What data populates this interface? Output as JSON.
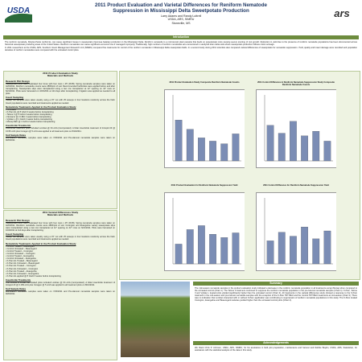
{
  "header": {
    "title": [
      "2011 Product Evaluation and Varietal Differences for Reniform Nematode",
      "Suppression in Mississippi Delta Sweetpotato Production"
    ],
    "authors": "Larry Adams and Randy Luttrell",
    "affiliation": "USDA, ARS, SIMRU",
    "location": "Stoneville, MS",
    "logo_left": "USDA",
    "logo_right": "ars"
  },
  "introduction": {
    "heading": "Introduction",
    "paragraphs": [
      "The reniform nematode, Rotylenchulus reniformis, can cause significant losses in sweetpotato (Ipomoea batatas) production in the Mississippi Delta. Reniform nematode is a microscopic plant parasite that feeds on sweetpotato roots causing severe stunting of root growth. Reduction in yield due to the presence of reniform nematode populations has been documented across historical sweetpotato producing areas of the United States. Reniform nematodes can cause significant economic loss if managed improperly. Traditionally, high numbers of reniform nematodes are encountered in sandy/silt loam delta soils where sweetpotato production follows cotton acreage.",
      "In 2011 researchers at the USDA, ARS, Southern Insect Management Research Unit (SIMRU) compared five treatments for control of the reniform nematode in Mississippi Delta sweetpotato fields. In a second study during 2011 scientists also compared varietal differences of sweetpotato for nematode suppression. Yield, quality and insect damage were recorded and population densities of reniform nematodes were compared with the untreated control plots."
    ]
  },
  "study_2011": {
    "heading": [
      "2011 Product Evaluation Study",
      "Materials and Methods"
    ],
    "blocks": [
      {
        "heading": "Research Plot Design",
        "lines": [
          "Sweetpotato plots were replicated four times with four rows x 25' (RCB). Spring nematode samples were taken on 4/20/2011. Reniform nematode counts were 2800/pint of soil. Recommended herbicides were applied before and after transplanting. Sweetpotato slips were transplanted using a two row transplanter at 12\" spacing on 42\" rows on 6/21/2011. Plots were harvested on 10/3/2011 at 114 days after transplanting. Irrigation was applied as needed to all plots."
        ]
      },
      {
        "heading": "Insect Sampling",
        "lines": [
          "Sweep net samples were taken weekly using a 15\" net with 25 sweeps in four locations randomly across the field. Insect populations were recorded and treatments applied as needed."
        ]
      },
      {
        "heading": "Nematicide Treatments Applied in the Product Evaluation Study",
        "lines": [
          "• Untreated",
          "• K-Pam HL @ 8 GA/A 3 weeks before transplanting",
          "• Telone II @ 6 GA/A 2 weeks before transplanting",
          "• Nemacur @ 2 LB/A 1 week before transplanting",
          "• Vydate L @ 1 GA/A 2 weeks before transplanting",
          "• Mocap 6EC @ 1 GA/A 2 weeks before transplanting"
        ]
      },
      {
        "heading": "Insecticide Treatments",
        "lines": [
          "Insecticide treatment plots included Lorsban @ 64 oz/A (incorporated). A foliar insecticide treatment of Intrepid 2F @ 0.156 oz/A plus Coragen @ 5 oz/A was applied to all treatment plots on 8/10/2011."
        ]
      },
      {
        "heading": "Soil Sample Dates",
        "lines": [
          "Mid-season nematode samples were taken on 7/20/2011 and Pre-Harvest nematode samples were taken on 9/20/2011."
        ]
      }
    ]
  },
  "study_varietal": {
    "heading": [
      "2011 Varietal Differences Study",
      "Materials and Methods"
    ],
    "blocks": [
      {
        "heading": "Research Plot Design",
        "lines": [
          "Sweetpotato plots were replicated four times with four rows x 25' (RCB). Spring nematode samples were taken on 4/20/2011. Reniform nematode counts were 2800/pint of soil. Covington and Evangeline variety sweetpotato slips were transplanted using a two row transplanter at 12\" spacing on 42\" rows on 6/21/2011. Plots were harvested on 10/4/2011 at 114 days after transplanting."
        ]
      },
      {
        "heading": "Insect Sampling",
        "lines": [
          "Sweep net samples were taken weekly using a 15\" net with 25 sweeps in four locations randomly across the field. Insect populations were recorded and treatments applied as needed."
        ]
      },
      {
        "heading": "Nematicide Treatments Applied in the Product Evaluation Study",
        "lines": [
          "• Control Treated – Beauregard",
          "• Control Untreated – Beauregard",
          "• Control Treated – Covington",
          "• Control Untreated – Covington",
          "• Control Treated – Evangeline",
          "• Control Untreated – Evangeline",
          "• K-Pam HL Treated – Beauregard",
          "• K-Pam HL Untreated – Beauregard",
          "• K-Pam HL Treated – Covington",
          "• K-Pam HL Untreated – Covington",
          "• K-Pam HL Treated – Evangeline",
          "• K-Pam HL Untreated – Evangeline",
          "• K-Pam HL applied @ 8 GA/A 3 weeks before transplanting"
        ]
      },
      {
        "heading": "Insecticide Treatments",
        "lines": [
          "The Control & K-Pam HL treated plots included Lorsban @ 64 oz/A (incorporated). A foliar insecticide treatment of Intrepid 2F @ 0.156 oz/A plus Coragen @ 5 oz/A was applied to all treatment plots on 8/10/2011."
        ]
      },
      {
        "heading": "Soil Sample Dates",
        "lines": [
          "Mid-season nematode samples were taken on 7/20/2011 and Pre-Harvest nematode samples were taken on 9/20/2011."
        ]
      }
    ]
  },
  "charts": [
    {
      "title": "2011 Product Evaluation Study Composite Reniform Nematode Counts",
      "values": [
        620,
        480,
        350,
        300,
        260,
        410
      ],
      "ylim": [
        0,
        1000
      ],
      "color": "#7b8db5"
    },
    {
      "title": "2011 Control Difference in Reniform Nematode Suppression Study Composite Reniform Nematode Counts",
      "values": [
        540,
        420,
        600,
        380,
        450,
        300
      ],
      "ylim": [
        0,
        1000
      ],
      "color": "#7b8db5"
    },
    {
      "title": "2011 Product Evaluation for Reniform Nematode Suppression Yield",
      "values": [
        300,
        520,
        580,
        450,
        400,
        470
      ],
      "ylim": [
        0,
        1000
      ],
      "color": "#7b8db5"
    },
    {
      "title": "2011 Control Difference for Reniform Nematode Suppression Yield",
      "values": [
        350,
        480,
        420,
        560,
        380,
        500
      ],
      "ylim": [
        0,
        1000
      ],
      "color": "#7b8db5"
    }
  ],
  "summary": {
    "heading": "Summary",
    "paragraphs": [
      "The mid-season nematode samples in the product evaluation study indicated a decrease in the reniform nematode population in all treatments except Mocap when compared to the untreated control (Chart 1). The Telone II treatment continued to suppress the reniform nematode population in the pre-harvest nematode samples (Chart 1). K-Pam, Telone II and Vydate L treated plots yielded significantly higher than the untreated control (Chart 2). All treatments in the varietal differences study showed a response to the K-Pam treatment in the mid-season and pre-harvest nematode samples with the exception of the K-Pam TRT BEU and the Control TRT BEU treatments at mid-season (Chart 3). There was no indication that Lorsban interacted with or without K-Pam application was contributing to suppression of reniform nematode populations in this study. The K-Pam treated Covington, Evangeline and Beauregard varieties yielded higher than the untreated control plots (Chart 4)."
    ]
  },
  "acknowledgements": {
    "heading": "Acknowledgements",
    "text": "We thank Chris P. Johnson, USDA, ARS, SIMRU, for his assistance in field plot preparation, maintenance and harvest and Debbie Boykin, USDA, ARS, Statistician, for assistance with the statistical analysis of the data in this study."
  }
}
